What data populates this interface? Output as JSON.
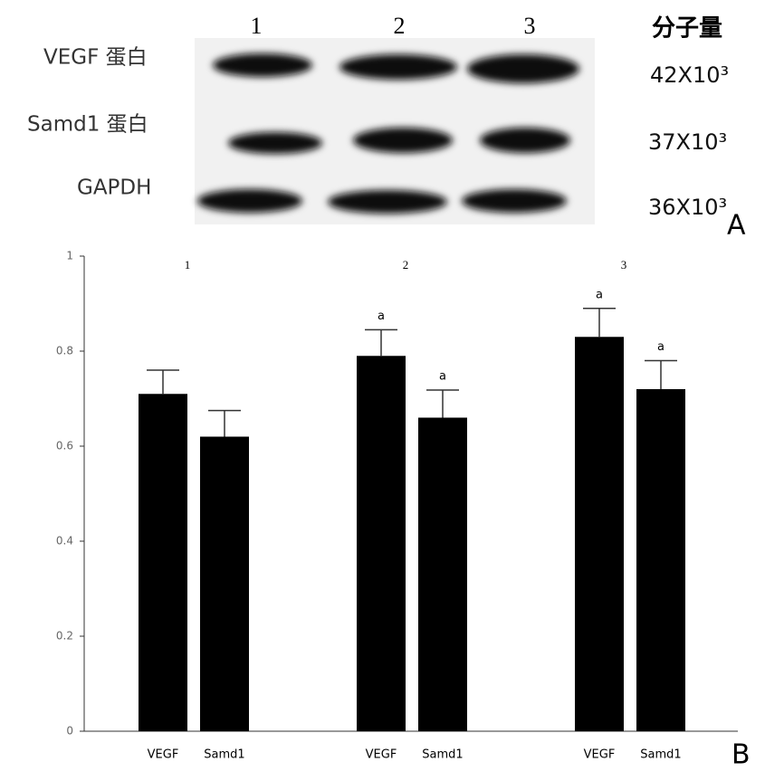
{
  "panel_a": {
    "lanes": [
      "1",
      "2",
      "3"
    ],
    "mw_header": "分子量",
    "rows": [
      {
        "label": "VEGF 蛋白",
        "mw": "42X10³"
      },
      {
        "label": "Samd1 蛋白",
        "mw": "37X10³"
      },
      {
        "label": "GAPDH",
        "mw": "36X10³"
      }
    ],
    "panel_label": "A"
  },
  "chart_data": {
    "type": "bar",
    "panel_label": "B",
    "categories": [
      "1",
      "2",
      "3"
    ],
    "series": [
      {
        "name": "VEGF",
        "color": "#000000",
        "values": [
          0.71,
          0.79,
          0.83
        ],
        "errors": [
          0.05,
          0.055,
          0.06
        ],
        "annotations": [
          null,
          "a",
          "a"
        ]
      },
      {
        "name": "Samd1",
        "color": "#000000",
        "values": [
          0.62,
          0.66,
          0.72
        ],
        "errors": [
          0.055,
          0.058,
          0.06
        ],
        "annotations": [
          null,
          "a",
          "a"
        ]
      }
    ],
    "ylim": [
      0,
      1
    ],
    "yticks": [
      0,
      0.2,
      0.4,
      0.6,
      0.8,
      1
    ]
  }
}
